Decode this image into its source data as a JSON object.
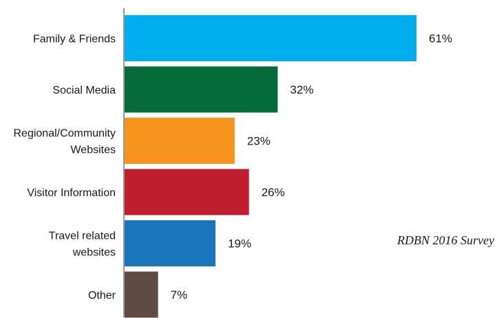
{
  "chart_data": {
    "type": "bar",
    "orientation": "horizontal",
    "categories": [
      [
        "Family & Friends"
      ],
      [
        "Social Media"
      ],
      [
        "Regional/Community",
        "Websites"
      ],
      [
        "Visitor Information"
      ],
      [
        "Travel related",
        "websites"
      ],
      [
        "Other"
      ]
    ],
    "values": [
      61,
      32,
      23,
      26,
      19,
      7
    ],
    "value_labels": [
      "61%",
      "32%",
      "23%",
      "26%",
      "19%",
      "7%"
    ],
    "colors": [
      "#00adef",
      "#066b3a",
      "#f7941d",
      "#be1e2d",
      "#1b75bc",
      "#5e4b43"
    ],
    "xlim": [
      0,
      70
    ],
    "grid": false,
    "legend": "none"
  },
  "source_note": "RDBN 2016 Survey"
}
